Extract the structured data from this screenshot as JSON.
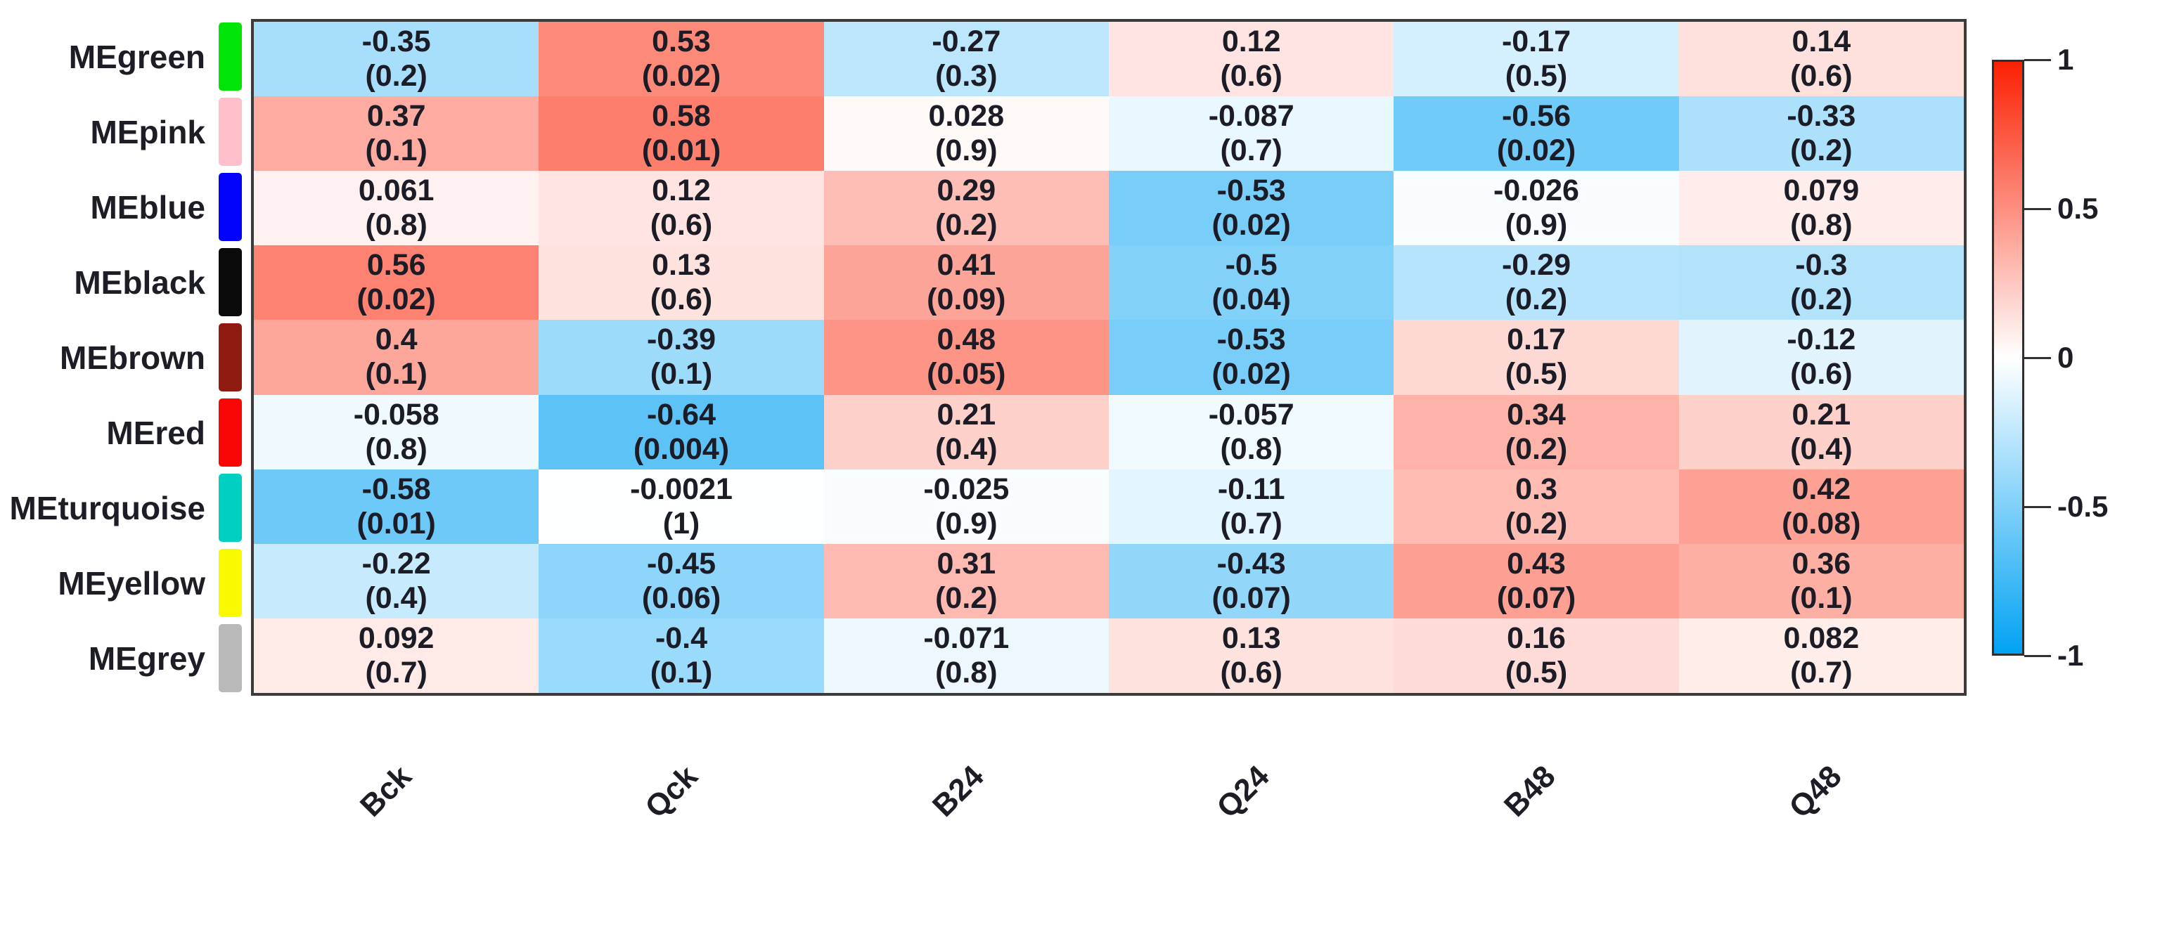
{
  "chart_data": {
    "type": "heatmap",
    "description": "Module-trait relationships heatmap: Pearson correlations with p-values in parentheses",
    "columns": [
      "Bck",
      "Qck",
      "B24",
      "Q24",
      "B48",
      "Q48"
    ],
    "rows": [
      {
        "label": "MEgreen",
        "module_color": "#00E408",
        "cells": [
          {
            "value": "-0.35",
            "p": "(0.2)"
          },
          {
            "value": "0.53",
            "p": "(0.02)"
          },
          {
            "value": "-0.27",
            "p": "(0.3)"
          },
          {
            "value": "0.12",
            "p": "(0.6)"
          },
          {
            "value": "-0.17",
            "p": "(0.5)"
          },
          {
            "value": "0.14",
            "p": "(0.6)"
          }
        ]
      },
      {
        "label": "MEpink",
        "module_color": "#FFC0CB",
        "cells": [
          {
            "value": "0.37",
            "p": "(0.1)"
          },
          {
            "value": "0.58",
            "p": "(0.01)"
          },
          {
            "value": "0.028",
            "p": "(0.9)"
          },
          {
            "value": "-0.087",
            "p": "(0.7)"
          },
          {
            "value": "-0.56",
            "p": "(0.02)"
          },
          {
            "value": "-0.33",
            "p": "(0.2)"
          }
        ]
      },
      {
        "label": "MEblue",
        "module_color": "#0202FA",
        "cells": [
          {
            "value": "0.061",
            "p": "(0.8)"
          },
          {
            "value": "0.12",
            "p": "(0.6)"
          },
          {
            "value": "0.29",
            "p": "(0.2)"
          },
          {
            "value": "-0.53",
            "p": "(0.02)"
          },
          {
            "value": "-0.026",
            "p": "(0.9)"
          },
          {
            "value": "0.079",
            "p": "(0.8)"
          }
        ]
      },
      {
        "label": "MEblack",
        "module_color": "#0A0A0A",
        "cells": [
          {
            "value": "0.56",
            "p": "(0.02)"
          },
          {
            "value": "0.13",
            "p": "(0.6)"
          },
          {
            "value": "0.41",
            "p": "(0.09)"
          },
          {
            "value": "-0.5",
            "p": "(0.04)"
          },
          {
            "value": "-0.29",
            "p": "(0.2)"
          },
          {
            "value": "-0.3",
            "p": "(0.2)"
          }
        ]
      },
      {
        "label": "MEbrown",
        "module_color": "#8F1B10",
        "cells": [
          {
            "value": "0.4",
            "p": "(0.1)"
          },
          {
            "value": "-0.39",
            "p": "(0.1)"
          },
          {
            "value": "0.48",
            "p": "(0.05)"
          },
          {
            "value": "-0.53",
            "p": "(0.02)"
          },
          {
            "value": "0.17",
            "p": "(0.5)"
          },
          {
            "value": "-0.12",
            "p": "(0.6)"
          }
        ]
      },
      {
        "label": "MEred",
        "module_color": "#F90606",
        "cells": [
          {
            "value": "-0.058",
            "p": "(0.8)"
          },
          {
            "value": "-0.64",
            "p": "(0.004)"
          },
          {
            "value": "0.21",
            "p": "(0.4)"
          },
          {
            "value": "-0.057",
            "p": "(0.8)"
          },
          {
            "value": "0.34",
            "p": "(0.2)"
          },
          {
            "value": "0.21",
            "p": "(0.4)"
          }
        ]
      },
      {
        "label": "MEturquoise",
        "module_color": "#00CFC1",
        "cells": [
          {
            "value": "-0.58",
            "p": "(0.01)"
          },
          {
            "value": "-0.0021",
            "p": "(1)"
          },
          {
            "value": "-0.025",
            "p": "(0.9)"
          },
          {
            "value": "-0.11",
            "p": "(0.7)"
          },
          {
            "value": "0.3",
            "p": "(0.2)"
          },
          {
            "value": "0.42",
            "p": "(0.08)"
          }
        ]
      },
      {
        "label": "MEyellow",
        "module_color": "#F8F800",
        "cells": [
          {
            "value": "-0.22",
            "p": "(0.4)"
          },
          {
            "value": "-0.45",
            "p": "(0.06)"
          },
          {
            "value": "0.31",
            "p": "(0.2)"
          },
          {
            "value": "-0.43",
            "p": "(0.07)"
          },
          {
            "value": "0.43",
            "p": "(0.07)"
          },
          {
            "value": "0.36",
            "p": "(0.1)"
          }
        ]
      },
      {
        "label": "MEgrey",
        "module_color": "#B9B9B9",
        "cells": [
          {
            "value": "0.092",
            "p": "(0.7)"
          },
          {
            "value": "-0.4",
            "p": "(0.1)"
          },
          {
            "value": "-0.071",
            "p": "(0.8)"
          },
          {
            "value": "0.13",
            "p": "(0.6)"
          },
          {
            "value": "0.16",
            "p": "(0.5)"
          },
          {
            "value": "0.082",
            "p": "(0.7)"
          }
        ]
      }
    ],
    "colorbar": {
      "ticks": [
        "1",
        "0.5",
        "0",
        "-0.5",
        "-1"
      ],
      "tick_values": [
        1,
        0.5,
        0,
        -0.5,
        -1
      ],
      "range": [
        -1,
        1
      ],
      "position": "right"
    },
    "palette": {
      "max_color": "#FB2003",
      "mid_color": "#FFFFFF",
      "min_color": "#02A2F3"
    },
    "grid": false,
    "xlabel": "",
    "ylabel": ""
  }
}
